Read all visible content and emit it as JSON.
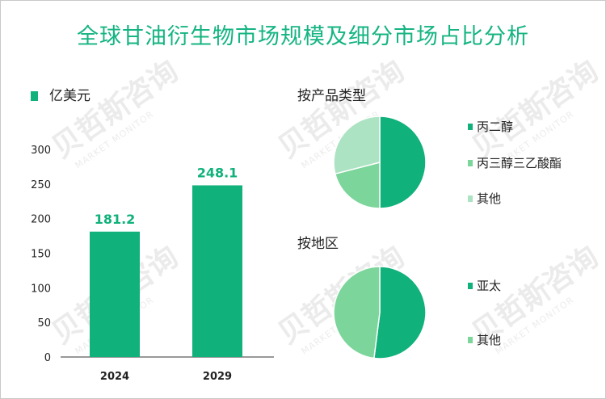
{
  "title": "全球甘油衍生物市场规模及细分市场占比分析",
  "watermark": {
    "cn": "贝哲斯咨询",
    "en": "MARKET MONITOR"
  },
  "colors": {
    "title": "#15b482",
    "bar": "#10b17a",
    "axis": "#333333"
  },
  "chart_data": [
    {
      "type": "bar",
      "legend": "亿美元",
      "categories": [
        "2024",
        "2029"
      ],
      "values": [
        181.2,
        248.1
      ],
      "value_labels": [
        "181.2",
        "248.1"
      ],
      "ylim": [
        0,
        300
      ],
      "yticks": [
        0,
        50,
        100,
        150,
        200,
        250,
        300
      ],
      "ytick_labels": [
        "0",
        "50",
        "100",
        "150",
        "200",
        "250",
        "300"
      ],
      "grid": false
    },
    {
      "type": "pie",
      "title": "按产品类型",
      "labels": [
        "丙二醇",
        "丙三醇三乙酸酯",
        "其他"
      ],
      "values": [
        50,
        21,
        29
      ],
      "colors": [
        "#10b17a",
        "#7cd59a",
        "#ace3c2"
      ],
      "legend_position": "right"
    },
    {
      "type": "pie",
      "title": "按地区",
      "labels": [
        "亚太",
        "其他"
      ],
      "values": [
        52,
        48
      ],
      "colors": [
        "#10b17a",
        "#7cd59a"
      ],
      "legend_position": "right"
    }
  ]
}
